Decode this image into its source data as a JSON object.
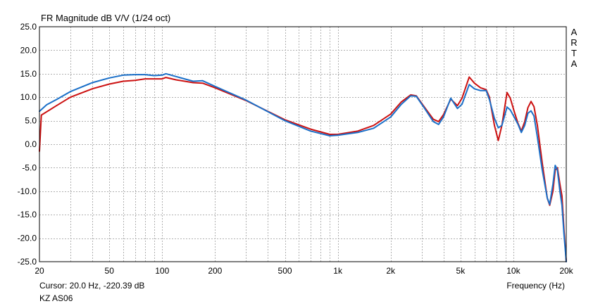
{
  "header": {
    "title": "FR Magnitude dB V/V (1/24 oct)"
  },
  "watermark": {
    "letters": [
      "A",
      "R",
      "T",
      "A"
    ]
  },
  "footer": {
    "cursor": "Cursor: 20.0 Hz, -220.39 dB",
    "device": "KZ AS06",
    "xlabel": "Frequency (Hz)"
  },
  "chart_data": {
    "type": "line",
    "title": "FR Magnitude dB V/V (1/24 oct)",
    "xlabel": "Frequency (Hz)",
    "ylabel": "",
    "xscale": "log",
    "xlim": [
      20,
      20000
    ],
    "ylim": [
      -25,
      25
    ],
    "grid": true,
    "xticks": [
      {
        "value": 20,
        "label": "20"
      },
      {
        "value": 50,
        "label": "50"
      },
      {
        "value": 100,
        "label": "100"
      },
      {
        "value": 200,
        "label": "200"
      },
      {
        "value": 500,
        "label": "500"
      },
      {
        "value": 1000,
        "label": "1k"
      },
      {
        "value": 2000,
        "label": "2k"
      },
      {
        "value": 5000,
        "label": "5k"
      },
      {
        "value": 10000,
        "label": "10k"
      },
      {
        "value": 20000,
        "label": "20k"
      }
    ],
    "yticks": [
      {
        "value": 25,
        "label": "25.0"
      },
      {
        "value": 20,
        "label": "20.0"
      },
      {
        "value": 15,
        "label": "15.0"
      },
      {
        "value": 10,
        "label": "10.0"
      },
      {
        "value": 5,
        "label": "5.0"
      },
      {
        "value": 0,
        "label": "0.0"
      },
      {
        "value": -5,
        "label": "-5.0"
      },
      {
        "value": -10,
        "label": "-10.0"
      },
      {
        "value": -15,
        "label": "-15.0"
      },
      {
        "value": -20,
        "label": "-20.0"
      },
      {
        "value": -25,
        "label": "-25.0"
      }
    ],
    "series": [
      {
        "color": "#cc1111",
        "points": [
          [
            20,
            -1.5
          ],
          [
            20.5,
            6.2
          ],
          [
            25,
            8.2
          ],
          [
            30,
            10.0
          ],
          [
            40,
            11.8
          ],
          [
            50,
            12.8
          ],
          [
            60,
            13.4
          ],
          [
            70,
            13.6
          ],
          [
            80,
            13.9
          ],
          [
            100,
            13.9
          ],
          [
            105,
            14.2
          ],
          [
            120,
            13.7
          ],
          [
            150,
            13.1
          ],
          [
            170,
            13.0
          ],
          [
            200,
            12.0
          ],
          [
            300,
            9.3
          ],
          [
            500,
            5.2
          ],
          [
            700,
            3.2
          ],
          [
            900,
            2.1
          ],
          [
            1000,
            2.1
          ],
          [
            1300,
            2.8
          ],
          [
            1600,
            4.0
          ],
          [
            2000,
            6.4
          ],
          [
            2300,
            9.0
          ],
          [
            2600,
            10.5
          ],
          [
            2800,
            10.3
          ],
          [
            3100,
            8.0
          ],
          [
            3500,
            5.3
          ],
          [
            3750,
            4.8
          ],
          [
            4000,
            6.3
          ],
          [
            4400,
            9.6
          ],
          [
            4800,
            8.2
          ],
          [
            5100,
            9.8
          ],
          [
            5600,
            14.3
          ],
          [
            6000,
            13.0
          ],
          [
            6500,
            12.0
          ],
          [
            7000,
            11.6
          ],
          [
            7300,
            10.0
          ],
          [
            7800,
            4.0
          ],
          [
            8200,
            0.8
          ],
          [
            8600,
            4.0
          ],
          [
            9200,
            11.0
          ],
          [
            9600,
            9.8
          ],
          [
            10100,
            7.0
          ],
          [
            10600,
            4.5
          ],
          [
            11100,
            2.8
          ],
          [
            11600,
            4.8
          ],
          [
            12100,
            7.8
          ],
          [
            12600,
            9.1
          ],
          [
            13100,
            8.0
          ],
          [
            13700,
            4.0
          ],
          [
            14600,
            -4.0
          ],
          [
            15600,
            -11.5
          ],
          [
            16100,
            -13.0
          ],
          [
            16800,
            -10.0
          ],
          [
            17300,
            -5.5
          ],
          [
            17800,
            -5.0
          ],
          [
            18400,
            -8.5
          ],
          [
            18900,
            -11.0
          ],
          [
            19400,
            -18.0
          ],
          [
            19800,
            -22.5
          ],
          [
            20000,
            -25.0
          ]
        ]
      },
      {
        "color": "#1a6fc8",
        "points": [
          [
            20,
            7.0
          ],
          [
            22,
            8.4
          ],
          [
            25,
            9.5
          ],
          [
            30,
            11.2
          ],
          [
            40,
            13.1
          ],
          [
            50,
            14.1
          ],
          [
            60,
            14.7
          ],
          [
            70,
            14.8
          ],
          [
            80,
            14.8
          ],
          [
            90,
            14.6
          ],
          [
            100,
            14.7
          ],
          [
            105,
            15.0
          ],
          [
            120,
            14.4
          ],
          [
            150,
            13.4
          ],
          [
            170,
            13.5
          ],
          [
            200,
            12.3
          ],
          [
            300,
            9.4
          ],
          [
            500,
            5.0
          ],
          [
            700,
            2.8
          ],
          [
            900,
            1.8
          ],
          [
            1000,
            1.9
          ],
          [
            1300,
            2.5
          ],
          [
            1600,
            3.4
          ],
          [
            2000,
            5.8
          ],
          [
            2300,
            8.5
          ],
          [
            2600,
            10.3
          ],
          [
            2800,
            10.2
          ],
          [
            3100,
            7.8
          ],
          [
            3500,
            4.8
          ],
          [
            3750,
            4.2
          ],
          [
            4000,
            5.8
          ],
          [
            4400,
            9.8
          ],
          [
            4800,
            7.6
          ],
          [
            5100,
            8.5
          ],
          [
            5600,
            12.7
          ],
          [
            6000,
            11.8
          ],
          [
            6500,
            11.4
          ],
          [
            7000,
            11.4
          ],
          [
            7300,
            9.5
          ],
          [
            7800,
            5.5
          ],
          [
            8200,
            3.5
          ],
          [
            8600,
            4.0
          ],
          [
            9200,
            7.9
          ],
          [
            9600,
            7.3
          ],
          [
            10100,
            5.8
          ],
          [
            10600,
            4.3
          ],
          [
            11100,
            2.5
          ],
          [
            11600,
            4.0
          ],
          [
            12100,
            6.6
          ],
          [
            12600,
            7.1
          ],
          [
            13100,
            6.0
          ],
          [
            13700,
            1.5
          ],
          [
            14600,
            -5.5
          ],
          [
            15600,
            -11.5
          ],
          [
            16100,
            -12.8
          ],
          [
            16800,
            -8.5
          ],
          [
            17300,
            -4.5
          ],
          [
            17800,
            -5.5
          ],
          [
            18400,
            -10.0
          ],
          [
            18900,
            -13.0
          ],
          [
            19400,
            -19.0
          ],
          [
            19800,
            -23.0
          ],
          [
            20000,
            -25.0
          ]
        ]
      }
    ]
  }
}
